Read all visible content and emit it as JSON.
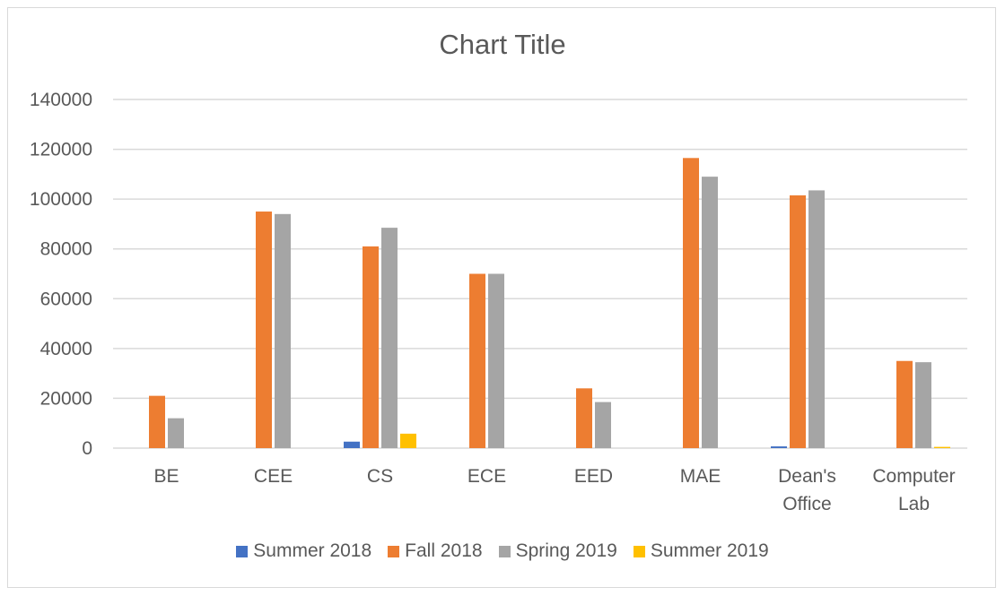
{
  "chart_data": {
    "type": "bar",
    "title": "Chart Title",
    "xlabel": "",
    "ylabel": "",
    "categories": [
      [
        "BE"
      ],
      [
        "CEE"
      ],
      [
        "CS"
      ],
      [
        "ECE"
      ],
      [
        "EED"
      ],
      [
        "MAE"
      ],
      [
        "Dean's",
        "Office"
      ],
      [
        "Computer",
        "Lab"
      ]
    ],
    "ylim": [
      0,
      140000
    ],
    "yticks": [
      0,
      20000,
      40000,
      60000,
      80000,
      100000,
      120000,
      140000
    ],
    "ytick_labels": [
      "0",
      "20000",
      "40000",
      "60000",
      "80000",
      "100000",
      "120000",
      "140000"
    ],
    "grid": true,
    "legend_position": "bottom",
    "series": [
      {
        "name": "Summer 2018",
        "color": "#4472c4",
        "values": [
          0,
          0,
          2600,
          0,
          0,
          0,
          700,
          0
        ]
      },
      {
        "name": "Fall 2018",
        "color": "#ed7d31",
        "values": [
          21000,
          95000,
          81000,
          70000,
          24000,
          116500,
          101500,
          35000
        ]
      },
      {
        "name": "Spring 2019",
        "color": "#a5a5a5",
        "values": [
          12000,
          94000,
          88500,
          70000,
          18500,
          109000,
          103500,
          34500
        ]
      },
      {
        "name": "Summer 2019",
        "color": "#ffc000",
        "values": [
          0,
          0,
          5800,
          0,
          0,
          0,
          0,
          500
        ]
      }
    ]
  }
}
